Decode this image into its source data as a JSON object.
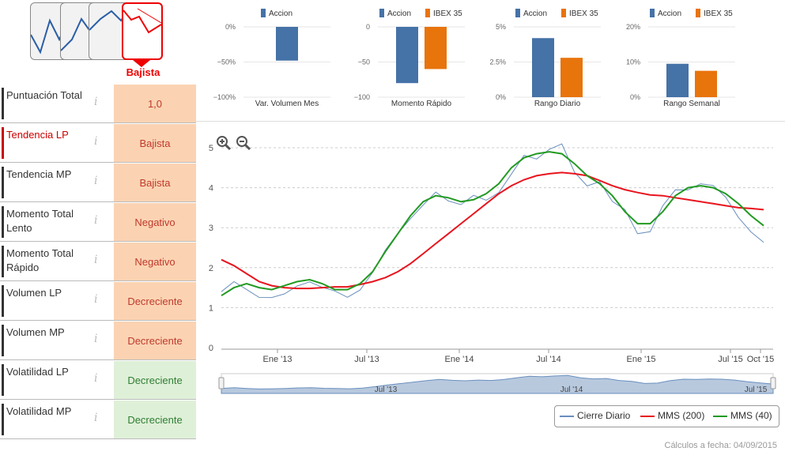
{
  "header": {
    "trend_thumbnails": [
      {
        "name": "trend-thumb-1",
        "active": false
      },
      {
        "name": "trend-thumb-2",
        "active": false
      },
      {
        "name": "trend-thumb-3",
        "active": false
      },
      {
        "name": "trend-thumb-bajista",
        "active": true
      }
    ],
    "selected_trend_label": "Bajista"
  },
  "indicators": [
    {
      "label": "Puntuación Total",
      "value": "1,0",
      "color": "orange",
      "highlight": false
    },
    {
      "label": "Tendencia LP",
      "value": "Bajista",
      "color": "orange",
      "highlight": true
    },
    {
      "label": "Tendencia MP",
      "value": "Bajista",
      "color": "orange",
      "highlight": false
    },
    {
      "label": "Momento Total Lento",
      "value": "Negativo",
      "color": "orange",
      "highlight": false
    },
    {
      "label": "Momento Total Rápido",
      "value": "Negativo",
      "color": "orange",
      "highlight": false
    },
    {
      "label": "Volumen LP",
      "value": "Decreciente",
      "color": "orange",
      "highlight": false
    },
    {
      "label": "Volumen MP",
      "value": "Decreciente",
      "color": "orange",
      "highlight": false
    },
    {
      "label": "Volatilidad LP",
      "value": "Decreciente",
      "color": "green",
      "highlight": false
    },
    {
      "label": "Volatilidad MP",
      "value": "Decreciente",
      "color": "green",
      "highlight": false
    }
  ],
  "info_glyph": "i",
  "colors": {
    "accion": "#4572a7",
    "ibex": "#e8740c",
    "cierre": "#6a8fbd",
    "mms200": "#e8141e",
    "mms40": "#229a22"
  },
  "chart_data": [
    {
      "type": "bar",
      "title": "Var. Volumen Mes",
      "legend": [
        "Accion"
      ],
      "series": [
        {
          "name": "Accion",
          "values": [
            -48
          ]
        }
      ],
      "ylim": [
        -100,
        0
      ],
      "yticks": [
        "0%",
        "−50%",
        "−100%"
      ]
    },
    {
      "type": "bar",
      "title": "Momento Rápido",
      "legend": [
        "Accion",
        "IBEX 35"
      ],
      "series": [
        {
          "name": "Accion",
          "values": [
            -80
          ]
        },
        {
          "name": "IBEX 35",
          "values": [
            -60
          ]
        }
      ],
      "ylim": [
        -100,
        0
      ],
      "yticks": [
        "0",
        "−50",
        "−100"
      ]
    },
    {
      "type": "bar",
      "title": "Rango Diario",
      "legend": [
        "Accion",
        "IBEX 35"
      ],
      "series": [
        {
          "name": "Accion",
          "values": [
            4.2
          ]
        },
        {
          "name": "IBEX 35",
          "values": [
            2.8
          ]
        }
      ],
      "ylim": [
        0,
        5
      ],
      "yticks": [
        "5%",
        "2.5%",
        "0%"
      ]
    },
    {
      "type": "bar",
      "title": "Rango Semanal",
      "legend": [
        "Accion",
        "IBEX 35"
      ],
      "series": [
        {
          "name": "Accion",
          "values": [
            9.5
          ]
        },
        {
          "name": "IBEX 35",
          "values": [
            7.5
          ]
        }
      ],
      "ylim": [
        0,
        20
      ],
      "yticks": [
        "20%",
        "10%",
        "0%"
      ]
    },
    {
      "type": "line",
      "title": "",
      "ylim": [
        0,
        5
      ],
      "yticks": [
        "5",
        "4",
        "3",
        "2",
        "1",
        "0"
      ],
      "xticks": [
        "Ene '13",
        "Jul '13",
        "Ene '14",
        "Jul '14",
        "Ene '15",
        "Jul '15",
        "Oct '15"
      ],
      "navigator_labels": [
        "Jul '13",
        "Jul '14",
        "Jul '15"
      ],
      "series": [
        {
          "name": "Cierre Diario",
          "values": [
            1.4,
            1.6,
            1.4,
            1.25,
            1.3,
            1.4,
            1.55,
            1.6,
            1.45,
            1.4,
            1.3,
            1.5,
            1.9,
            2.4,
            2.8,
            3.2,
            3.6,
            3.95,
            3.7,
            3.55,
            3.75,
            3.65,
            3.9,
            4.4,
            4.85,
            4.7,
            4.9,
            5.05,
            4.4,
            4.1,
            4.2,
            3.65,
            3.4,
            2.8,
            2.9,
            3.6,
            4.0,
            3.95,
            4.05,
            4.0,
            3.75,
            3.3,
            2.95,
            2.65
          ]
        },
        {
          "name": "MMS (200)",
          "values": [
            2.2,
            2.05,
            1.85,
            1.65,
            1.55,
            1.5,
            1.48,
            1.48,
            1.5,
            1.52,
            1.52,
            1.58,
            1.65,
            1.75,
            1.9,
            2.1,
            2.35,
            2.6,
            2.85,
            3.1,
            3.35,
            3.6,
            3.85,
            4.05,
            4.2,
            4.3,
            4.35,
            4.38,
            4.35,
            4.3,
            4.18,
            4.05,
            3.95,
            3.88,
            3.82,
            3.8,
            3.75,
            3.7,
            3.65,
            3.6,
            3.55,
            3.5,
            3.48,
            3.45
          ]
        },
        {
          "name": "MMS (40)",
          "values": [
            1.3,
            1.5,
            1.6,
            1.5,
            1.45,
            1.55,
            1.65,
            1.7,
            1.6,
            1.45,
            1.45,
            1.6,
            1.9,
            2.4,
            2.85,
            3.3,
            3.65,
            3.8,
            3.75,
            3.65,
            3.7,
            3.85,
            4.1,
            4.5,
            4.75,
            4.85,
            4.9,
            4.85,
            4.6,
            4.3,
            4.1,
            3.8,
            3.4,
            3.1,
            3.1,
            3.4,
            3.8,
            4.0,
            4.05,
            4.0,
            3.85,
            3.6,
            3.3,
            3.05
          ]
        }
      ]
    }
  ],
  "legend": [
    "Cierre Diario",
    "MMS (200)",
    "MMS (40)"
  ],
  "footer": "Cálculos a fecha: 04/09/2015"
}
